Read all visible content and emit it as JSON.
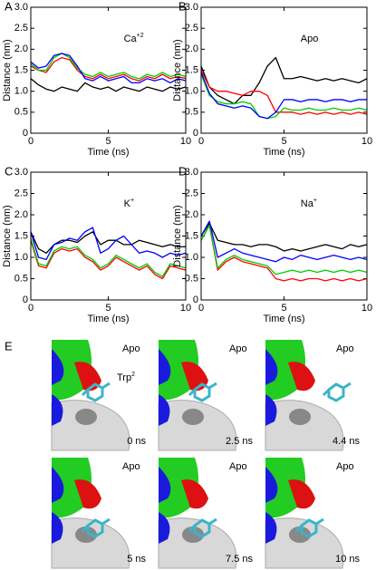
{
  "chart_data": [
    {
      "type": "line",
      "panel_label": "A",
      "annotation": {
        "text": "Ca",
        "sup": "+2"
      },
      "x_label": "Time (ns)",
      "y_label": "Distance (nm)",
      "x": [
        0,
        0.5,
        1,
        1.5,
        2,
        2.5,
        3,
        3.5,
        4,
        4.5,
        5,
        5.5,
        6,
        6.5,
        7,
        7.5,
        8,
        8.5,
        9,
        9.5,
        10
      ],
      "xlim": [
        0,
        10
      ],
      "xticks": [
        0,
        5,
        10
      ],
      "ylim": [
        0,
        3
      ],
      "yticks": [
        0,
        0.5,
        {
          "value": 1,
          "label": "1.0"
        },
        1.5,
        {
          "value": 2,
          "label": "2.0"
        },
        2.5,
        {
          "value": 3,
          "label": "3.0"
        }
      ],
      "series": [
        {
          "color": "#000000",
          "values": [
            1.3,
            1.15,
            1.05,
            1.0,
            1.1,
            1.05,
            1.0,
            1.2,
            1.1,
            1.05,
            1.1,
            1.0,
            1.1,
            1.05,
            1.0,
            1.1,
            1.05,
            1.0,
            1.1,
            1.05,
            1.1
          ]
        },
        {
          "color": "#ff0000",
          "values": [
            1.6,
            1.5,
            1.45,
            1.7,
            1.8,
            1.75,
            1.5,
            1.35,
            1.3,
            1.4,
            1.3,
            1.35,
            1.4,
            1.3,
            1.25,
            1.35,
            1.3,
            1.4,
            1.3,
            1.35,
            1.3
          ]
        },
        {
          "color": "#00cc00",
          "values": [
            1.65,
            1.5,
            1.5,
            1.8,
            1.9,
            1.8,
            1.55,
            1.4,
            1.35,
            1.45,
            1.35,
            1.4,
            1.45,
            1.35,
            1.3,
            1.4,
            1.35,
            1.45,
            1.35,
            1.4,
            1.35
          ]
        },
        {
          "color": "#0000ff",
          "values": [
            1.7,
            1.55,
            1.6,
            1.85,
            1.9,
            1.85,
            1.6,
            1.3,
            1.25,
            1.35,
            1.25,
            1.3,
            1.35,
            1.2,
            1.2,
            1.3,
            1.25,
            1.3,
            1.2,
            1.3,
            1.25
          ]
        }
      ]
    },
    {
      "type": "line",
      "panel_label": "B",
      "annotation": {
        "text": "Apo"
      },
      "x_label": "Time (ns)",
      "y_label": "Distance (nm)",
      "x": [
        0,
        0.5,
        1,
        1.5,
        2,
        2.5,
        3,
        3.5,
        4,
        4.5,
        5,
        5.5,
        6,
        6.5,
        7,
        7.5,
        8,
        8.5,
        9,
        9.5,
        10
      ],
      "xlim": [
        0,
        10
      ],
      "xticks": [
        0,
        5,
        10
      ],
      "ylim": [
        0,
        3
      ],
      "yticks": [
        0,
        0.5,
        {
          "value": 1,
          "label": "1.0"
        },
        1.5,
        {
          "value": 2,
          "label": "2.0"
        },
        2.5,
        {
          "value": 3,
          "label": "3.0"
        }
      ],
      "series": [
        {
          "color": "#000000",
          "values": [
            1.6,
            1.1,
            0.9,
            0.8,
            0.7,
            0.9,
            0.9,
            1.2,
            1.6,
            1.8,
            1.3,
            1.3,
            1.35,
            1.3,
            1.25,
            1.3,
            1.25,
            1.3,
            1.25,
            1.2,
            1.3
          ]
        },
        {
          "color": "#ff0000",
          "values": [
            1.5,
            1.1,
            1.0,
            1.0,
            0.95,
            0.9,
            1.0,
            1.0,
            0.9,
            0.5,
            0.5,
            0.5,
            0.45,
            0.5,
            0.45,
            0.5,
            0.45,
            0.5,
            0.45,
            0.5,
            0.45
          ]
        },
        {
          "color": "#00cc00",
          "values": [
            1.4,
            0.9,
            0.75,
            0.7,
            0.7,
            0.75,
            0.7,
            0.4,
            0.35,
            0.4,
            0.6,
            0.55,
            0.55,
            0.6,
            0.55,
            0.55,
            0.6,
            0.55,
            0.55,
            0.6,
            0.55
          ]
        },
        {
          "color": "#0000ff",
          "values": [
            1.45,
            0.95,
            0.7,
            0.65,
            0.6,
            0.65,
            0.6,
            0.4,
            0.35,
            0.5,
            0.8,
            0.8,
            0.75,
            0.8,
            0.8,
            0.75,
            0.8,
            0.8,
            0.75,
            0.8,
            0.8
          ]
        }
      ]
    },
    {
      "type": "line",
      "panel_label": "C",
      "annotation": {
        "text": "K",
        "sup": "+"
      },
      "x_label": "Time (ns)",
      "y_label": "Distance (nm)",
      "x": [
        0,
        0.5,
        1,
        1.5,
        2,
        2.5,
        3,
        3.5,
        4,
        4.5,
        5,
        5.5,
        6,
        6.5,
        7,
        7.5,
        8,
        8.5,
        9,
        9.5,
        10
      ],
      "xlim": [
        0,
        10
      ],
      "xticks": [
        0,
        5,
        10
      ],
      "ylim": [
        0,
        3
      ],
      "yticks": [
        0,
        0.5,
        {
          "value": 1,
          "label": "1.0"
        },
        1.5,
        {
          "value": 2,
          "label": "2.0"
        },
        2.5,
        {
          "value": 3,
          "label": "3.0"
        }
      ],
      "series": [
        {
          "color": "#000000",
          "values": [
            1.6,
            1.2,
            1.1,
            1.3,
            1.4,
            1.4,
            1.35,
            1.5,
            1.6,
            1.3,
            1.4,
            1.4,
            1.3,
            1.3,
            1.4,
            1.35,
            1.3,
            1.25,
            1.3,
            1.25,
            1.25
          ]
        },
        {
          "color": "#ff0000",
          "values": [
            1.4,
            0.8,
            0.75,
            1.1,
            1.2,
            1.15,
            1.2,
            1.0,
            0.9,
            0.7,
            0.8,
            1.0,
            0.9,
            0.8,
            0.7,
            0.8,
            0.6,
            0.5,
            0.8,
            0.75,
            0.7
          ]
        },
        {
          "color": "#00cc00",
          "values": [
            1.45,
            0.85,
            0.8,
            1.15,
            1.25,
            1.2,
            1.25,
            1.05,
            0.95,
            0.75,
            0.85,
            1.05,
            0.95,
            0.85,
            0.75,
            0.85,
            0.65,
            0.55,
            0.85,
            0.8,
            0.75
          ]
        },
        {
          "color": "#0000ff",
          "values": [
            1.6,
            1.0,
            0.95,
            1.3,
            1.35,
            1.45,
            1.4,
            1.6,
            1.7,
            1.1,
            1.2,
            1.4,
            1.5,
            1.3,
            1.1,
            1.15,
            1.1,
            1.0,
            1.1,
            1.05,
            1.1
          ]
        }
      ]
    },
    {
      "type": "line",
      "panel_label": "D",
      "annotation": {
        "text": "Na",
        "sup": "+"
      },
      "x_label": "Time (ns)",
      "y_label": "Distance (nm)",
      "x": [
        0,
        0.5,
        1,
        1.5,
        2,
        2.5,
        3,
        3.5,
        4,
        4.5,
        5,
        5.5,
        6,
        6.5,
        7,
        7.5,
        8,
        8.5,
        9,
        9.5,
        10
      ],
      "xlim": [
        0,
        10
      ],
      "xticks": [
        0,
        5,
        10
      ],
      "ylim": [
        0,
        3
      ],
      "yticks": [
        0,
        0.5,
        {
          "value": 1,
          "label": "1.0"
        },
        1.5,
        {
          "value": 2,
          "label": "2.0"
        },
        2.5,
        {
          "value": 3,
          "label": "3.0"
        }
      ],
      "series": [
        {
          "color": "#000000",
          "values": [
            1.5,
            1.8,
            1.4,
            1.35,
            1.3,
            1.3,
            1.25,
            1.3,
            1.3,
            1.25,
            1.15,
            1.2,
            1.15,
            1.2,
            1.25,
            1.3,
            1.25,
            1.2,
            1.3,
            1.25,
            1.3
          ]
        },
        {
          "color": "#ff0000",
          "values": [
            1.4,
            1.75,
            0.7,
            0.9,
            1.0,
            0.9,
            0.85,
            0.8,
            0.75,
            0.5,
            0.45,
            0.5,
            0.45,
            0.5,
            0.5,
            0.45,
            0.5,
            0.45,
            0.5,
            0.45,
            0.5
          ]
        },
        {
          "color": "#00cc00",
          "values": [
            1.4,
            1.75,
            0.75,
            0.95,
            1.05,
            0.95,
            0.9,
            0.85,
            0.8,
            0.6,
            0.65,
            0.7,
            0.65,
            0.7,
            0.65,
            0.7,
            0.65,
            0.7,
            0.65,
            0.7,
            0.65
          ]
        },
        {
          "color": "#0000ff",
          "values": [
            1.5,
            1.85,
            1.0,
            1.1,
            1.2,
            1.1,
            1.05,
            1.0,
            0.95,
            0.9,
            1.0,
            0.95,
            1.05,
            1.0,
            0.95,
            1.0,
            1.05,
            1.0,
            0.95,
            1.0,
            0.95
          ]
        }
      ]
    }
  ],
  "panel_e": {
    "label": "E",
    "frames": [
      {
        "state": "Apo",
        "time": "0 ns",
        "residue": {
          "text": "Trp",
          "sup": "2"
        }
      },
      {
        "state": "Apo",
        "time": "2.5 ns"
      },
      {
        "state": "Apo",
        "time": "4.4 ns"
      },
      {
        "state": "Apo",
        "time": "5 ns"
      },
      {
        "state": "Apo",
        "time": "7.5 ns"
      },
      {
        "state": "Apo",
        "time": "10 ns"
      }
    ]
  }
}
